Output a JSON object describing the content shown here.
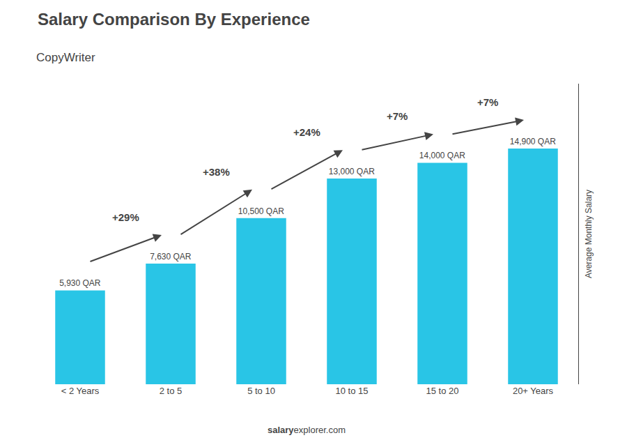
{
  "chart_data": {
    "type": "bar",
    "title": "Salary Comparison By Experience",
    "subtitle": "CopyWriter",
    "ylabel": "Average Monthly Salary",
    "categories": [
      "< 2 Years",
      "2 to 5",
      "5 to 10",
      "10 to 15",
      "15 to 20",
      "20+ Years"
    ],
    "values": [
      5930,
      7630,
      10500,
      13000,
      14000,
      14900
    ],
    "value_labels": [
      "5,930 QAR",
      "7,630 QAR",
      "10,500 QAR",
      "13,000 QAR",
      "14,000 QAR",
      "14,900 QAR"
    ],
    "data_labels": true,
    "color": "#29c5e6",
    "ylim": [
      0,
      19000
    ],
    "tick_labels": "x",
    "grid": false,
    "annotations": [
      "+29%",
      "+38%",
      "+24%",
      "+7%",
      "+7%"
    ],
    "watermark": [
      "salary",
      "explorer.com"
    ]
  }
}
